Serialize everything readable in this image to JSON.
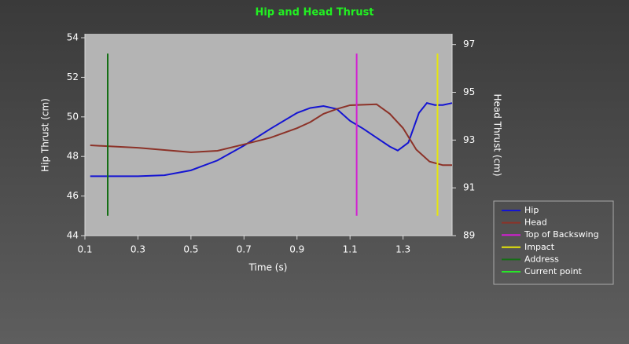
{
  "chart_data": {
    "type": "line",
    "title": "Hip and Head Thrust",
    "x_label": "Time (s)",
    "y_label": "Hip Thrust (cm)",
    "y2_label": "Head Thrust (cm)",
    "xlim": [
      0.1,
      1.485
    ],
    "xticks": [
      0.1,
      0.3,
      0.5,
      0.7,
      0.9,
      1.1,
      1.3
    ],
    "ylim": [
      44,
      54.2
    ],
    "yticks": [
      44,
      46,
      48,
      50,
      52,
      54
    ],
    "y2lim": [
      89,
      97.45
    ],
    "y2ticks": [
      89,
      91,
      93,
      95,
      97
    ],
    "legend": "right",
    "series": [
      {
        "name": "Hip",
        "color": "#1414d2",
        "x": [
          0.12,
          0.3,
          0.4,
          0.5,
          0.6,
          0.7,
          0.8,
          0.9,
          0.95,
          1.0,
          1.05,
          1.1,
          1.15,
          1.2,
          1.25,
          1.28,
          1.32,
          1.36,
          1.39,
          1.42,
          1.45,
          1.485
        ],
        "values": [
          47.0,
          47.0,
          47.05,
          47.3,
          47.8,
          48.55,
          49.4,
          50.2,
          50.45,
          50.55,
          50.4,
          49.8,
          49.4,
          48.95,
          48.5,
          48.3,
          48.7,
          50.2,
          50.7,
          50.6,
          50.6,
          50.7
        ]
      },
      {
        "name": "Head",
        "color": "#8c3228",
        "axis": "y2",
        "x": [
          0.12,
          0.3,
          0.5,
          0.6,
          0.7,
          0.8,
          0.9,
          0.95,
          1.0,
          1.05,
          1.1,
          1.2,
          1.25,
          1.3,
          1.35,
          1.4,
          1.45,
          1.485
        ],
        "values": [
          92.78,
          92.68,
          92.49,
          92.55,
          92.82,
          93.1,
          93.5,
          93.75,
          94.1,
          94.3,
          94.46,
          94.5,
          94.1,
          93.5,
          92.6,
          92.1,
          91.95,
          91.95
        ]
      },
      {
        "name": "Top of Backswing",
        "color": "#d21ed2",
        "x": [
          1.125,
          1.125
        ],
        "values": [
          53.2,
          45.0
        ]
      },
      {
        "name": "Impact",
        "color": "#e6e60a",
        "x": [
          1.43,
          1.43
        ],
        "values": [
          53.2,
          45.0
        ]
      },
      {
        "name": "Address",
        "color": "#146e14",
        "x": [
          0.186,
          0.186
        ],
        "values": [
          53.2,
          45.0
        ]
      },
      {
        "name": "Current point",
        "color": "#28e628",
        "x": [],
        "values": []
      }
    ]
  }
}
